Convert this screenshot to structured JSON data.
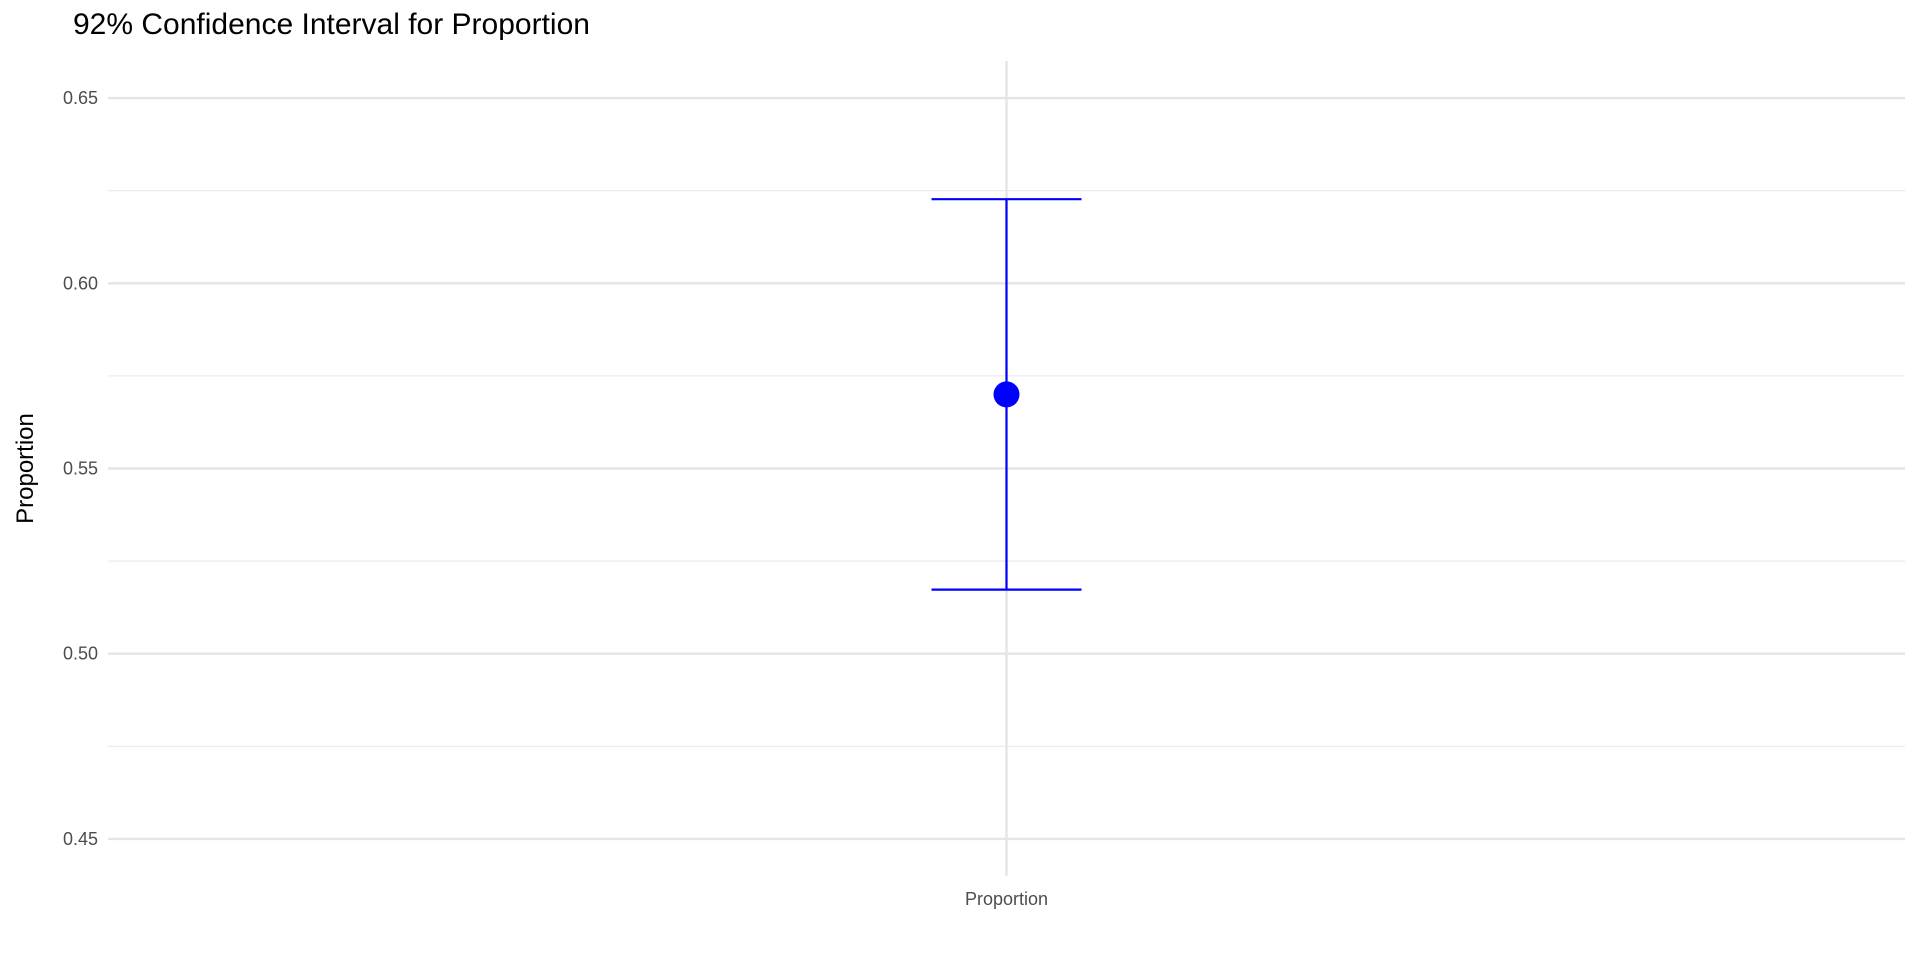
{
  "chart_data": {
    "type": "errorbar",
    "title": "92% Confidence Interval for Proportion",
    "xlabel": "",
    "ylabel": "Proportion",
    "categories": [
      "Proportion"
    ],
    "estimate": [
      0.57
    ],
    "lower": [
      0.5173
    ],
    "upper": [
      0.6227
    ],
    "ylim": [
      0.44,
      0.66
    ],
    "yticks": [
      0.45,
      0.5,
      0.55,
      0.6,
      0.65
    ],
    "ytick_labels": [
      "0.45",
      "0.50",
      "0.55",
      "0.60",
      "0.65"
    ],
    "grid": true,
    "color": "#0000ff"
  }
}
